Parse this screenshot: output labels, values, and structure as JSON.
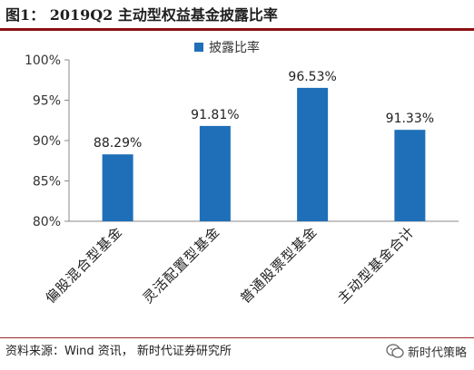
{
  "header": {
    "title": "图1： 2019Q2 主动型权益基金披露比率"
  },
  "chart_data": {
    "type": "bar",
    "categories": [
      "偏股混合型基金",
      "灵活配置型基金",
      "普通股票型基金",
      "主动型基金合计"
    ],
    "series": [
      {
        "name": "披露比率",
        "values": [
          88.29,
          91.81,
          96.53,
          91.33
        ],
        "color": "#1f6fb8"
      }
    ],
    "data_labels": [
      "88.29%",
      "91.81%",
      "96.53%",
      "91.33%"
    ],
    "ylim": [
      80,
      100
    ],
    "yticks": [
      80,
      85,
      90,
      95,
      100
    ],
    "ytick_labels": [
      "80%",
      "85%",
      "90%",
      "95%",
      "100%"
    ],
    "legend_position": "top-center",
    "grid": false
  },
  "footer": {
    "source": "资料来源：Wind 资讯， 新时代证券研究所",
    "brand": "新时代策略"
  }
}
